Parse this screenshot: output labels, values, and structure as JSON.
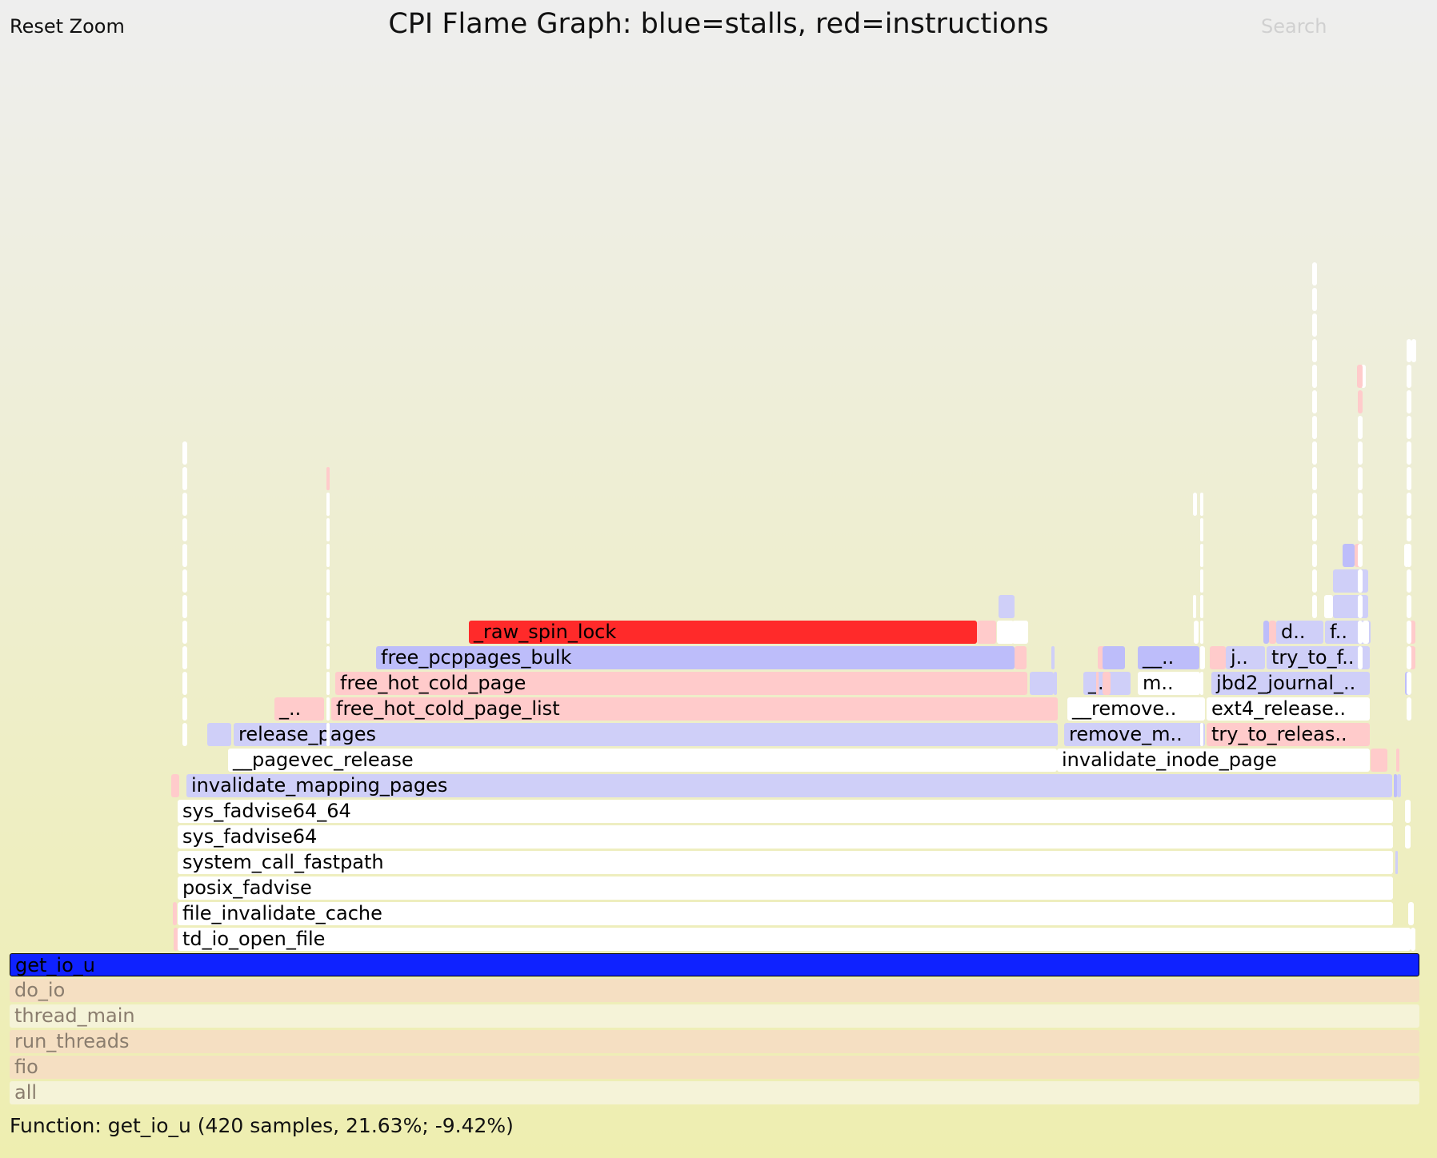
{
  "header": {
    "reset_zoom_label": "Reset Zoom",
    "title": "CPI Flame Graph: blue=stalls, red=instructions",
    "search_label": "Search"
  },
  "details": "Function: get_io_u (420 samples, 21.63%; -9.42%)",
  "colors": {
    "white": "#ffffff",
    "pink": "#ffcbcb",
    "lavender": "#cfcff8",
    "periwinkle": "#bdbdfa",
    "red": "#ff2a2a",
    "blue_highlight": "#0f22ff",
    "tan": "#f5dfc2",
    "cream": "#f5f3d8"
  },
  "frames": [
    {
      "label": "all",
      "c": "cream",
      "dim": true
    },
    {
      "label": "fio",
      "c": "tan",
      "dim": true
    },
    {
      "label": "run_threads",
      "c": "tan",
      "dim": true
    },
    {
      "label": "thread_main",
      "c": "cream",
      "dim": true
    },
    {
      "label": "do_io",
      "c": "tan",
      "dim": true
    },
    {
      "label": "get_io_u",
      "c": "blue_highlight",
      "hl": true
    },
    {
      "label": "td_io_open_file",
      "c": "white"
    },
    {
      "label": "file_invalidate_cache",
      "c": "white"
    },
    {
      "label": "posix_fadvise",
      "c": "white"
    },
    {
      "label": "system_call_fastpath",
      "c": "white"
    },
    {
      "label": "sys_fadvise64",
      "c": "white"
    },
    {
      "label": "sys_fadvise64_64",
      "c": "white"
    },
    {
      "label": "invalidate_mapping_pages",
      "c": "lavender"
    },
    {
      "label": "__pagevec_release",
      "c": "white"
    },
    {
      "label": "invalidate_inode_page",
      "c": "white"
    },
    {
      "label": "release_pages",
      "c": "lavender"
    },
    {
      "label": "remove_m..",
      "c": "lavender"
    },
    {
      "label": "try_to_releas..",
      "c": "pink"
    },
    {
      "label": "_..",
      "c": "pink"
    },
    {
      "label": "free_hot_cold_page_list",
      "c": "pink"
    },
    {
      "label": "__remove..",
      "c": "white"
    },
    {
      "label": "ext4_release..",
      "c": "white"
    },
    {
      "label": "free_hot_cold_page",
      "c": "pink"
    },
    {
      "label": "_..",
      "c": "lavender"
    },
    {
      "label": "m..",
      "c": "white"
    },
    {
      "label": "jbd2_journal_..",
      "c": "lavender"
    },
    {
      "label": "free_pcppages_bulk",
      "c": "periwinkle"
    },
    {
      "label": "__..",
      "c": "periwinkle"
    },
    {
      "label": "j..",
      "c": "lavender"
    },
    {
      "label": "try_to_f..",
      "c": "lavender"
    },
    {
      "label": "_raw_spin_lock",
      "c": "red"
    },
    {
      "label": "d..",
      "c": "lavender"
    },
    {
      "label": "f..",
      "c": "lavender"
    },
    {
      "label": "",
      "c": "pink"
    },
    {
      "label": "",
      "c": "pink"
    },
    {
      "label": "",
      "c": "pink"
    },
    {
      "label": "",
      "c": "white"
    },
    {
      "label": "",
      "c": "white"
    },
    {
      "label": "",
      "c": "lavender"
    },
    {
      "label": "",
      "c": "pink"
    },
    {
      "label": "",
      "c": "white"
    },
    {
      "label": "",
      "c": "white"
    },
    {
      "label": "",
      "c": "pink"
    },
    {
      "label": "",
      "c": "lavender"
    },
    {
      "label": "",
      "c": "pink"
    },
    {
      "label": "",
      "c": "pink"
    },
    {
      "label": "",
      "c": "periwinkle"
    },
    {
      "label": "",
      "c": "lavender"
    },
    {
      "label": "",
      "c": "lavender"
    },
    {
      "label": "",
      "c": "lavender"
    },
    {
      "label": "",
      "c": "pink"
    },
    {
      "label": "",
      "c": "pink"
    },
    {
      "label": "",
      "c": "white"
    },
    {
      "label": "",
      "c": "lavender"
    },
    {
      "label": "",
      "c": "lavender"
    },
    {
      "label": "",
      "c": "periwinkle"
    },
    {
      "label": "",
      "c": "pink"
    },
    {
      "label": "",
      "c": "pink"
    },
    {
      "label": "",
      "c": "periwinkle"
    },
    {
      "label": "",
      "c": "pink"
    },
    {
      "label": "",
      "c": "pink"
    },
    {
      "label": "",
      "c": "periwinkle"
    },
    {
      "label": "",
      "c": "lavender"
    },
    {
      "label": "",
      "c": "lavender"
    },
    {
      "label": "",
      "c": "periwinkle"
    },
    {
      "label": "",
      "c": "pink"
    },
    {
      "label": "",
      "c": "pink"
    },
    {
      "label": "",
      "c": "white"
    },
    {
      "label": "",
      "c": "pink"
    },
    {
      "label": "",
      "c": "pink"
    },
    {
      "label": "",
      "c": "white"
    },
    {
      "label": "",
      "c": "white"
    },
    {
      "label": "",
      "c": "white"
    },
    {
      "label": "",
      "c": "white"
    },
    {
      "label": "",
      "c": "white"
    },
    {
      "label": "",
      "c": "white"
    },
    {
      "label": "",
      "c": "white"
    },
    {
      "label": "",
      "c": "white"
    },
    {
      "label": "",
      "c": "white"
    },
    {
      "label": "",
      "c": "white"
    }
  ]
}
